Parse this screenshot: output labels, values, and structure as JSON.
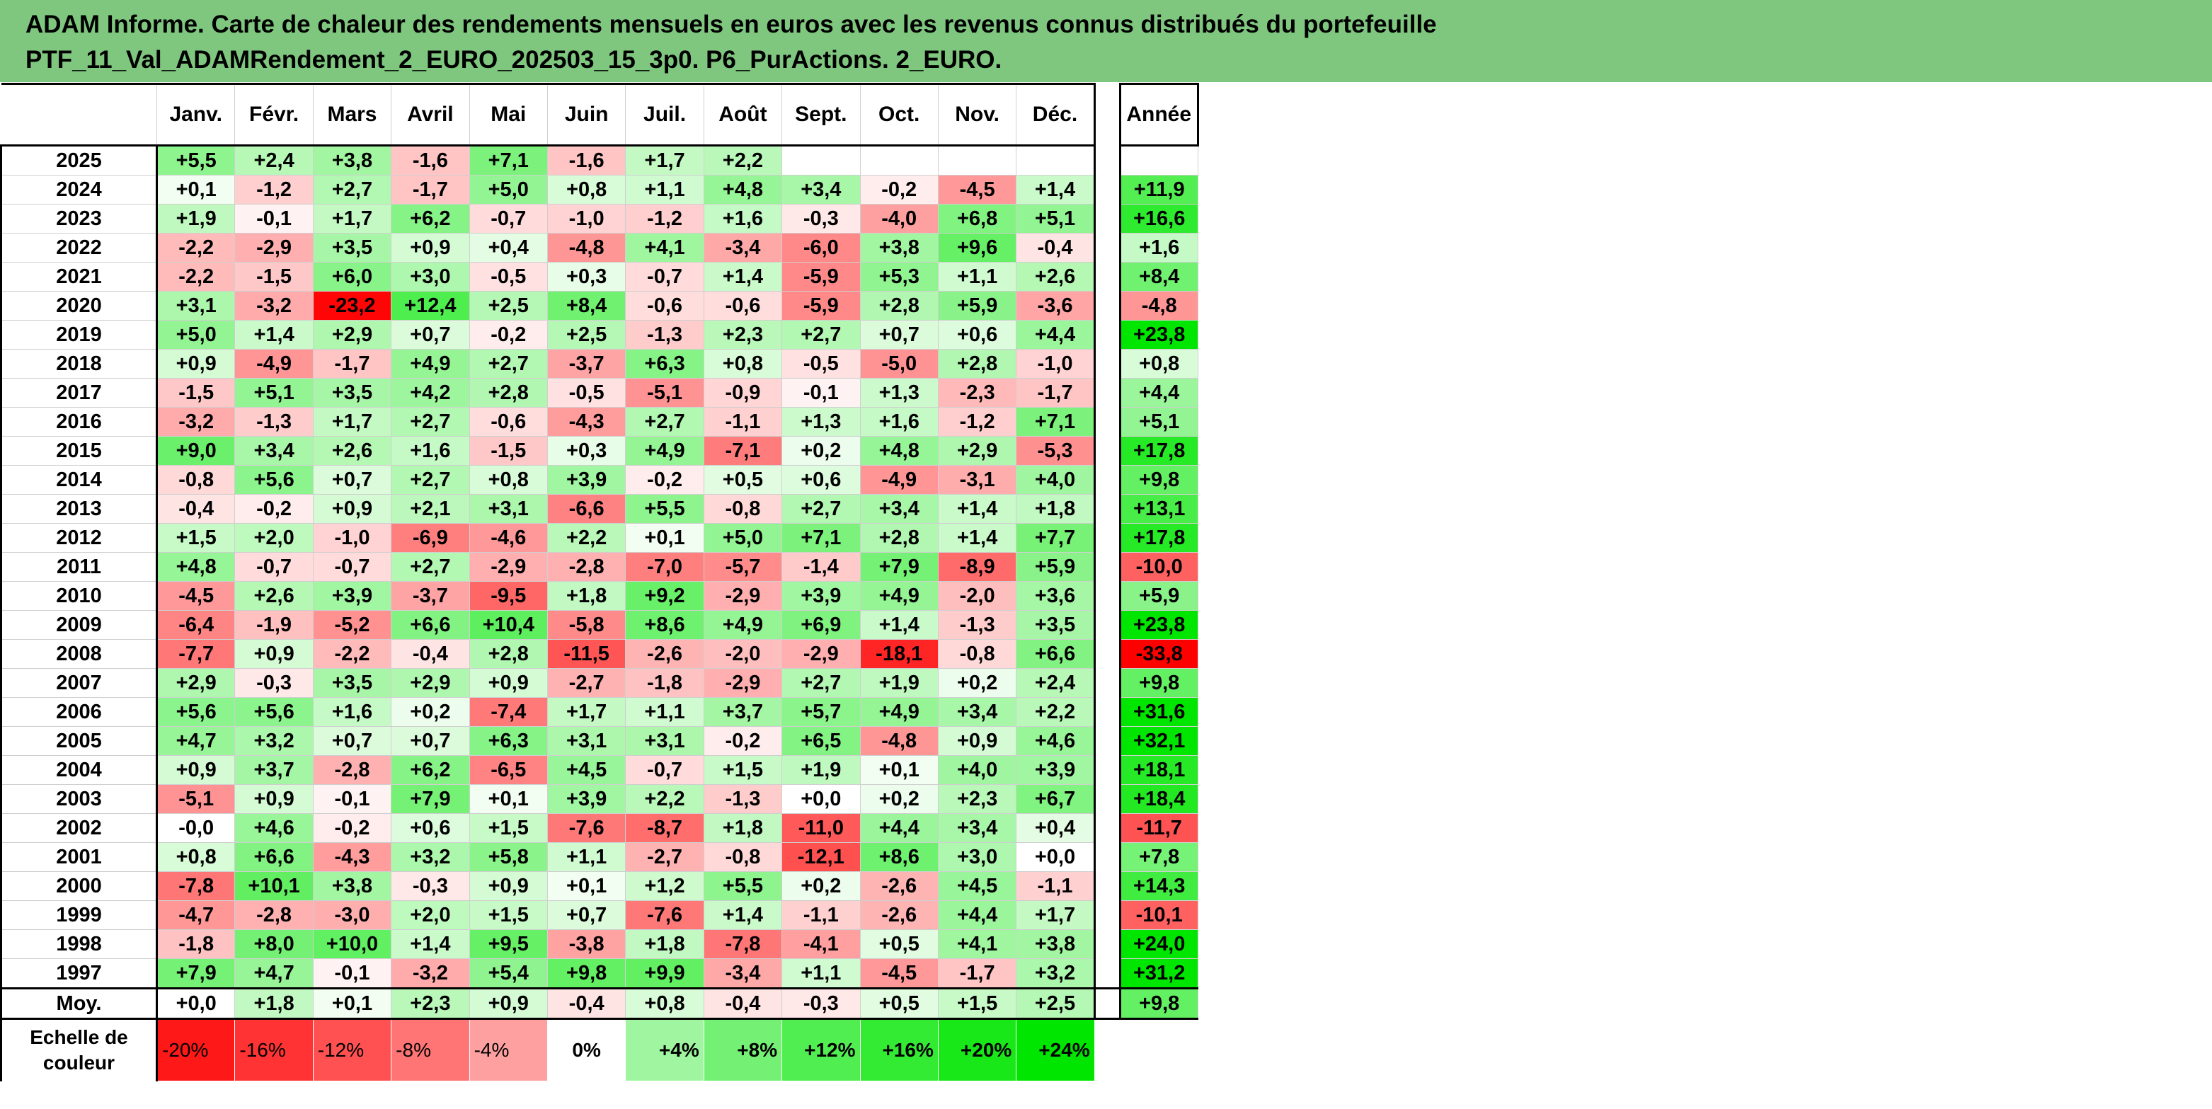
{
  "title": {
    "line1": "ADAM Informe. Carte de chaleur des rendements mensuels en euros avec les revenus connus distribués du portefeuille",
    "line2": "PTF_11_Val_ADAMRendement_2_EURO_202503_15_3p0. P6_PurActions. 2_EURO."
  },
  "colors": {
    "title_bg": "#7fc77f",
    "negative_max": "#ff0000",
    "positive_max": "#00e600",
    "neutral": "#ffffff"
  },
  "chart_data": {
    "type": "heatmap",
    "title": "ADAM Informe. Carte de chaleur des rendements mensuels en euros avec les revenus connus distribués du portefeuille PTF_11_Val_ADAMRendement_2_EURO_202503_15_3p0. P6_PurActions. 2_EURO.",
    "columns": [
      "Janv.",
      "Févr.",
      "Mars",
      "Avril",
      "Mai",
      "Juin",
      "Juil.",
      "Août",
      "Sept.",
      "Oct.",
      "Nov.",
      "Déc."
    ],
    "annual_label": "Année",
    "rows": [
      {
        "year": "2025",
        "values": [
          "+5,5",
          "+2,4",
          "+3,8",
          "-1,6",
          "+7,1",
          "-1,6",
          "+1,7",
          "+2,2",
          "",
          "",
          "",
          ""
        ],
        "annual": ""
      },
      {
        "year": "2024",
        "values": [
          "+0,1",
          "-1,2",
          "+2,7",
          "-1,7",
          "+5,0",
          "+0,8",
          "+1,1",
          "+4,8",
          "+3,4",
          "-0,2",
          "-4,5",
          "+1,4"
        ],
        "annual": "+11,9"
      },
      {
        "year": "2023",
        "values": [
          "+1,9",
          "-0,1",
          "+1,7",
          "+6,2",
          "-0,7",
          "-1,0",
          "-1,2",
          "+1,6",
          "-0,3",
          "-4,0",
          "+6,8",
          "+5,1"
        ],
        "annual": "+16,6"
      },
      {
        "year": "2022",
        "values": [
          "-2,2",
          "-2,9",
          "+3,5",
          "+0,9",
          "+0,4",
          "-4,8",
          "+4,1",
          "-3,4",
          "-6,0",
          "+3,8",
          "+9,6",
          "-0,4"
        ],
        "annual": "+1,6"
      },
      {
        "year": "2021",
        "values": [
          "-2,2",
          "-1,5",
          "+6,0",
          "+3,0",
          "-0,5",
          "+0,3",
          "-0,7",
          "+1,4",
          "-5,9",
          "+5,3",
          "+1,1",
          "+2,6"
        ],
        "annual": "+8,4"
      },
      {
        "year": "2020",
        "values": [
          "+3,1",
          "-3,2",
          "-23,2",
          "+12,4",
          "+2,5",
          "+8,4",
          "-0,6",
          "-0,6",
          "-5,9",
          "+2,8",
          "+5,9",
          "-3,6"
        ],
        "annual": "-4,8"
      },
      {
        "year": "2019",
        "values": [
          "+5,0",
          "+1,4",
          "+2,9",
          "+0,7",
          "-0,2",
          "+2,5",
          "-1,3",
          "+2,3",
          "+2,7",
          "+0,7",
          "+0,6",
          "+4,4"
        ],
        "annual": "+23,8"
      },
      {
        "year": "2018",
        "values": [
          "+0,9",
          "-4,9",
          "-1,7",
          "+4,9",
          "+2,7",
          "-3,7",
          "+6,3",
          "+0,8",
          "-0,5",
          "-5,0",
          "+2,8",
          "-1,0"
        ],
        "annual": "+0,8"
      },
      {
        "year": "2017",
        "values": [
          "-1,5",
          "+5,1",
          "+3,5",
          "+4,2",
          "+2,8",
          "-0,5",
          "-5,1",
          "-0,9",
          "-0,1",
          "+1,3",
          "-2,3",
          "-1,7"
        ],
        "annual": "+4,4"
      },
      {
        "year": "2016",
        "values": [
          "-3,2",
          "-1,3",
          "+1,7",
          "+2,7",
          "-0,6",
          "-4,3",
          "+2,7",
          "-1,1",
          "+1,3",
          "+1,6",
          "-1,2",
          "+7,1"
        ],
        "annual": "+5,1"
      },
      {
        "year": "2015",
        "values": [
          "+9,0",
          "+3,4",
          "+2,6",
          "+1,6",
          "-1,5",
          "+0,3",
          "+4,9",
          "-7,1",
          "+0,2",
          "+4,8",
          "+2,9",
          "-5,3"
        ],
        "annual": "+17,8"
      },
      {
        "year": "2014",
        "values": [
          "-0,8",
          "+5,6",
          "+0,7",
          "+2,7",
          "+0,8",
          "+3,9",
          "-0,2",
          "+0,5",
          "+0,6",
          "-4,9",
          "-3,1",
          "+4,0"
        ],
        "annual": "+9,8"
      },
      {
        "year": "2013",
        "values": [
          "-0,4",
          "-0,2",
          "+0,9",
          "+2,1",
          "+3,1",
          "-6,6",
          "+5,5",
          "-0,8",
          "+2,7",
          "+3,4",
          "+1,4",
          "+1,8"
        ],
        "annual": "+13,1"
      },
      {
        "year": "2012",
        "values": [
          "+1,5",
          "+2,0",
          "-1,0",
          "-6,9",
          "-4,6",
          "+2,2",
          "+0,1",
          "+5,0",
          "+7,1",
          "+2,8",
          "+1,4",
          "+7,7"
        ],
        "annual": "+17,8"
      },
      {
        "year": "2011",
        "values": [
          "+4,8",
          "-0,7",
          "-0,7",
          "+2,7",
          "-2,9",
          "-2,8",
          "-7,0",
          "-5,7",
          "-1,4",
          "+7,9",
          "-8,9",
          "+5,9"
        ],
        "annual": "-10,0"
      },
      {
        "year": "2010",
        "values": [
          "-4,5",
          "+2,6",
          "+3,9",
          "-3,7",
          "-9,5",
          "+1,8",
          "+9,2",
          "-2,9",
          "+3,9",
          "+4,9",
          "-2,0",
          "+3,6"
        ],
        "annual": "+5,9"
      },
      {
        "year": "2009",
        "values": [
          "-6,4",
          "-1,9",
          "-5,2",
          "+6,6",
          "+10,4",
          "-5,8",
          "+8,6",
          "+4,9",
          "+6,9",
          "+1,4",
          "-1,3",
          "+3,5"
        ],
        "annual": "+23,8"
      },
      {
        "year": "2008",
        "values": [
          "-7,7",
          "+0,9",
          "-2,2",
          "-0,4",
          "+2,8",
          "-11,5",
          "-2,6",
          "-2,0",
          "-2,9",
          "-18,1",
          "-0,8",
          "+6,6"
        ],
        "annual": "-33,8"
      },
      {
        "year": "2007",
        "values": [
          "+2,9",
          "-0,3",
          "+3,5",
          "+2,9",
          "+0,9",
          "-2,7",
          "-1,8",
          "-2,9",
          "+2,7",
          "+1,9",
          "+0,2",
          "+2,4"
        ],
        "annual": "+9,8"
      },
      {
        "year": "2006",
        "values": [
          "+5,6",
          "+5,6",
          "+1,6",
          "+0,2",
          "-7,4",
          "+1,7",
          "+1,1",
          "+3,7",
          "+5,7",
          "+4,9",
          "+3,4",
          "+2,2"
        ],
        "annual": "+31,6"
      },
      {
        "year": "2005",
        "values": [
          "+4,7",
          "+3,2",
          "+0,7",
          "+0,7",
          "+6,3",
          "+3,1",
          "+3,1",
          "-0,2",
          "+6,5",
          "-4,8",
          "+0,9",
          "+4,6"
        ],
        "annual": "+32,1"
      },
      {
        "year": "2004",
        "values": [
          "+0,9",
          "+3,7",
          "-2,8",
          "+6,2",
          "-6,5",
          "+4,5",
          "-0,7",
          "+1,5",
          "+1,9",
          "+0,1",
          "+4,0",
          "+3,9"
        ],
        "annual": "+18,1"
      },
      {
        "year": "2003",
        "values": [
          "-5,1",
          "+0,9",
          "-0,1",
          "+7,9",
          "+0,1",
          "+3,9",
          "+2,2",
          "-1,3",
          "+0,0",
          "+0,2",
          "+2,3",
          "+6,7"
        ],
        "annual": "+18,4"
      },
      {
        "year": "2002",
        "values": [
          "-0,0",
          "+4,6",
          "-0,2",
          "+0,6",
          "+1,5",
          "-7,6",
          "-8,7",
          "+1,8",
          "-11,0",
          "+4,4",
          "+3,4",
          "+0,4"
        ],
        "annual": "-11,7"
      },
      {
        "year": "2001",
        "values": [
          "+0,8",
          "+6,6",
          "-4,3",
          "+3,2",
          "+5,8",
          "+1,1",
          "-2,7",
          "-0,8",
          "-12,1",
          "+8,6",
          "+3,0",
          "+0,0"
        ],
        "annual": "+7,8"
      },
      {
        "year": "2000",
        "values": [
          "-7,8",
          "+10,1",
          "+3,8",
          "-0,3",
          "+0,9",
          "+0,1",
          "+1,2",
          "+5,5",
          "+0,2",
          "-2,6",
          "+4,5",
          "-1,1"
        ],
        "annual": "+14,3"
      },
      {
        "year": "1999",
        "values": [
          "-4,7",
          "-2,8",
          "-3,0",
          "+2,0",
          "+1,5",
          "+0,7",
          "-7,6",
          "+1,4",
          "-1,1",
          "-2,6",
          "+4,4",
          "+1,7"
        ],
        "annual": "-10,1"
      },
      {
        "year": "1998",
        "values": [
          "-1,8",
          "+8,0",
          "+10,0",
          "+1,4",
          "+9,5",
          "-3,8",
          "+1,8",
          "-7,8",
          "-4,1",
          "+0,5",
          "+4,1",
          "+3,8"
        ],
        "annual": "+24,0"
      },
      {
        "year": "1997",
        "values": [
          "+7,9",
          "+4,7",
          "-0,1",
          "-3,2",
          "+5,4",
          "+9,8",
          "+9,9",
          "-3,4",
          "+1,1",
          "-4,5",
          "-1,7",
          "+3,2"
        ],
        "annual": "+31,2"
      }
    ],
    "average": {
      "label": "Moy.",
      "values": [
        "+0,0",
        "+1,8",
        "+0,1",
        "+2,3",
        "+0,9",
        "-0,4",
        "+0,8",
        "-0,4",
        "-0,3",
        "+0,5",
        "+1,5",
        "+2,5"
      ],
      "annual": "+9,8"
    },
    "scale": {
      "label": "Echelle de couleur",
      "steps": [
        "-20%",
        "-16%",
        "-12%",
        "-8%",
        "-4%",
        "0%",
        "+4%",
        "+8%",
        "+12%",
        "+16%",
        "+20%",
        "+24%"
      ],
      "step_values": [
        -20,
        -16,
        -12,
        -8,
        -4,
        0,
        4,
        8,
        12,
        16,
        20,
        24
      ]
    },
    "color_scale": {
      "min": -24,
      "max": 24,
      "negative_color": "#ff0000",
      "positive_color": "#00e600"
    }
  }
}
